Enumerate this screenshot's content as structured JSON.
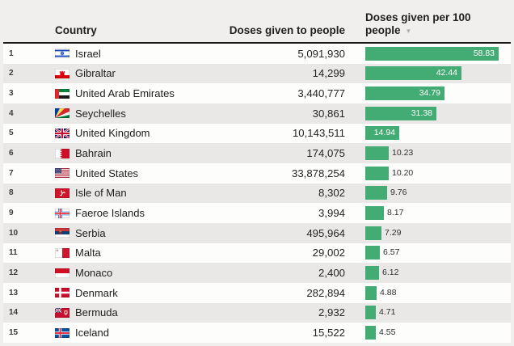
{
  "header": {
    "country_label": "Country",
    "doses_label": "Doses given to people",
    "per100_label": "Doses given per 100 people",
    "sort_icon": "▼"
  },
  "colors": {
    "bar": "#43ab74",
    "page_bg": "#f0efed",
    "row_bg": "#fdfdfc",
    "row_alt_bg": "#e9e8e6",
    "header_rule": "#19181a",
    "bar_label_inside": "#ffffff",
    "bar_label_outside": "#2e2e2e"
  },
  "chart_data": {
    "type": "bar",
    "orientation": "horizontal",
    "title": "Doses given per 100 people",
    "columns": [
      "Country",
      "Doses given to people",
      "Doses given per 100 people"
    ],
    "sort": {
      "column": "Doses given per 100 people",
      "direction": "desc"
    },
    "value_axis_max": 58.83,
    "categories": [
      "Israel",
      "Gibraltar",
      "United Arab Emirates",
      "Seychelles",
      "United Kingdom",
      "Bahrain",
      "United States",
      "Isle of Man",
      "Faeroe Islands",
      "Serbia",
      "Malta",
      "Monaco",
      "Denmark",
      "Bermuda",
      "Iceland"
    ],
    "series": [
      {
        "name": "Doses given to people",
        "values": [
          5091930,
          14299,
          3440777,
          30861,
          10143511,
          174075,
          33878254,
          8302,
          3994,
          495964,
          29002,
          2400,
          282894,
          2932,
          15522
        ]
      },
      {
        "name": "Doses given per 100 people",
        "values": [
          58.83,
          42.44,
          34.79,
          31.38,
          14.94,
          10.23,
          10.2,
          9.76,
          8.17,
          7.29,
          6.57,
          6.12,
          4.88,
          4.71,
          4.55
        ]
      }
    ],
    "rows": [
      {
        "rank": "1",
        "country": "Israel",
        "flag": "israel",
        "doses": "5,091,930",
        "per100": "58.83",
        "per100_value": 58.83
      },
      {
        "rank": "2",
        "country": "Gibraltar",
        "flag": "gibraltar",
        "doses": "14,299",
        "per100": "42.44",
        "per100_value": 42.44
      },
      {
        "rank": "3",
        "country": "United Arab Emirates",
        "flag": "uae",
        "doses": "3,440,777",
        "per100": "34.79",
        "per100_value": 34.79
      },
      {
        "rank": "4",
        "country": "Seychelles",
        "flag": "seychelles",
        "doses": "30,861",
        "per100": "31.38",
        "per100_value": 31.38
      },
      {
        "rank": "5",
        "country": "United Kingdom",
        "flag": "uk",
        "doses": "10,143,511",
        "per100": "14.94",
        "per100_value": 14.94
      },
      {
        "rank": "6",
        "country": "Bahrain",
        "flag": "bahrain",
        "doses": "174,075",
        "per100": "10.23",
        "per100_value": 10.23
      },
      {
        "rank": "7",
        "country": "United States",
        "flag": "usa",
        "doses": "33,878,254",
        "per100": "10.20",
        "per100_value": 10.2
      },
      {
        "rank": "8",
        "country": "Isle of Man",
        "flag": "isleofman",
        "doses": "8,302",
        "per100": "9.76",
        "per100_value": 9.76
      },
      {
        "rank": "9",
        "country": "Faeroe Islands",
        "flag": "faeroe",
        "doses": "3,994",
        "per100": "8.17",
        "per100_value": 8.17
      },
      {
        "rank": "10",
        "country": "Serbia",
        "flag": "serbia",
        "doses": "495,964",
        "per100": "7.29",
        "per100_value": 7.29
      },
      {
        "rank": "11",
        "country": "Malta",
        "flag": "malta",
        "doses": "29,002",
        "per100": "6.57",
        "per100_value": 6.57
      },
      {
        "rank": "12",
        "country": "Monaco",
        "flag": "monaco",
        "doses": "2,400",
        "per100": "6.12",
        "per100_value": 6.12
      },
      {
        "rank": "13",
        "country": "Denmark",
        "flag": "denmark",
        "doses": "282,894",
        "per100": "4.88",
        "per100_value": 4.88
      },
      {
        "rank": "14",
        "country": "Bermuda",
        "flag": "bermuda",
        "doses": "2,932",
        "per100": "4.71",
        "per100_value": 4.71
      },
      {
        "rank": "15",
        "country": "Iceland",
        "flag": "iceland",
        "doses": "15,522",
        "per100": "4.55",
        "per100_value": 4.55
      }
    ]
  }
}
